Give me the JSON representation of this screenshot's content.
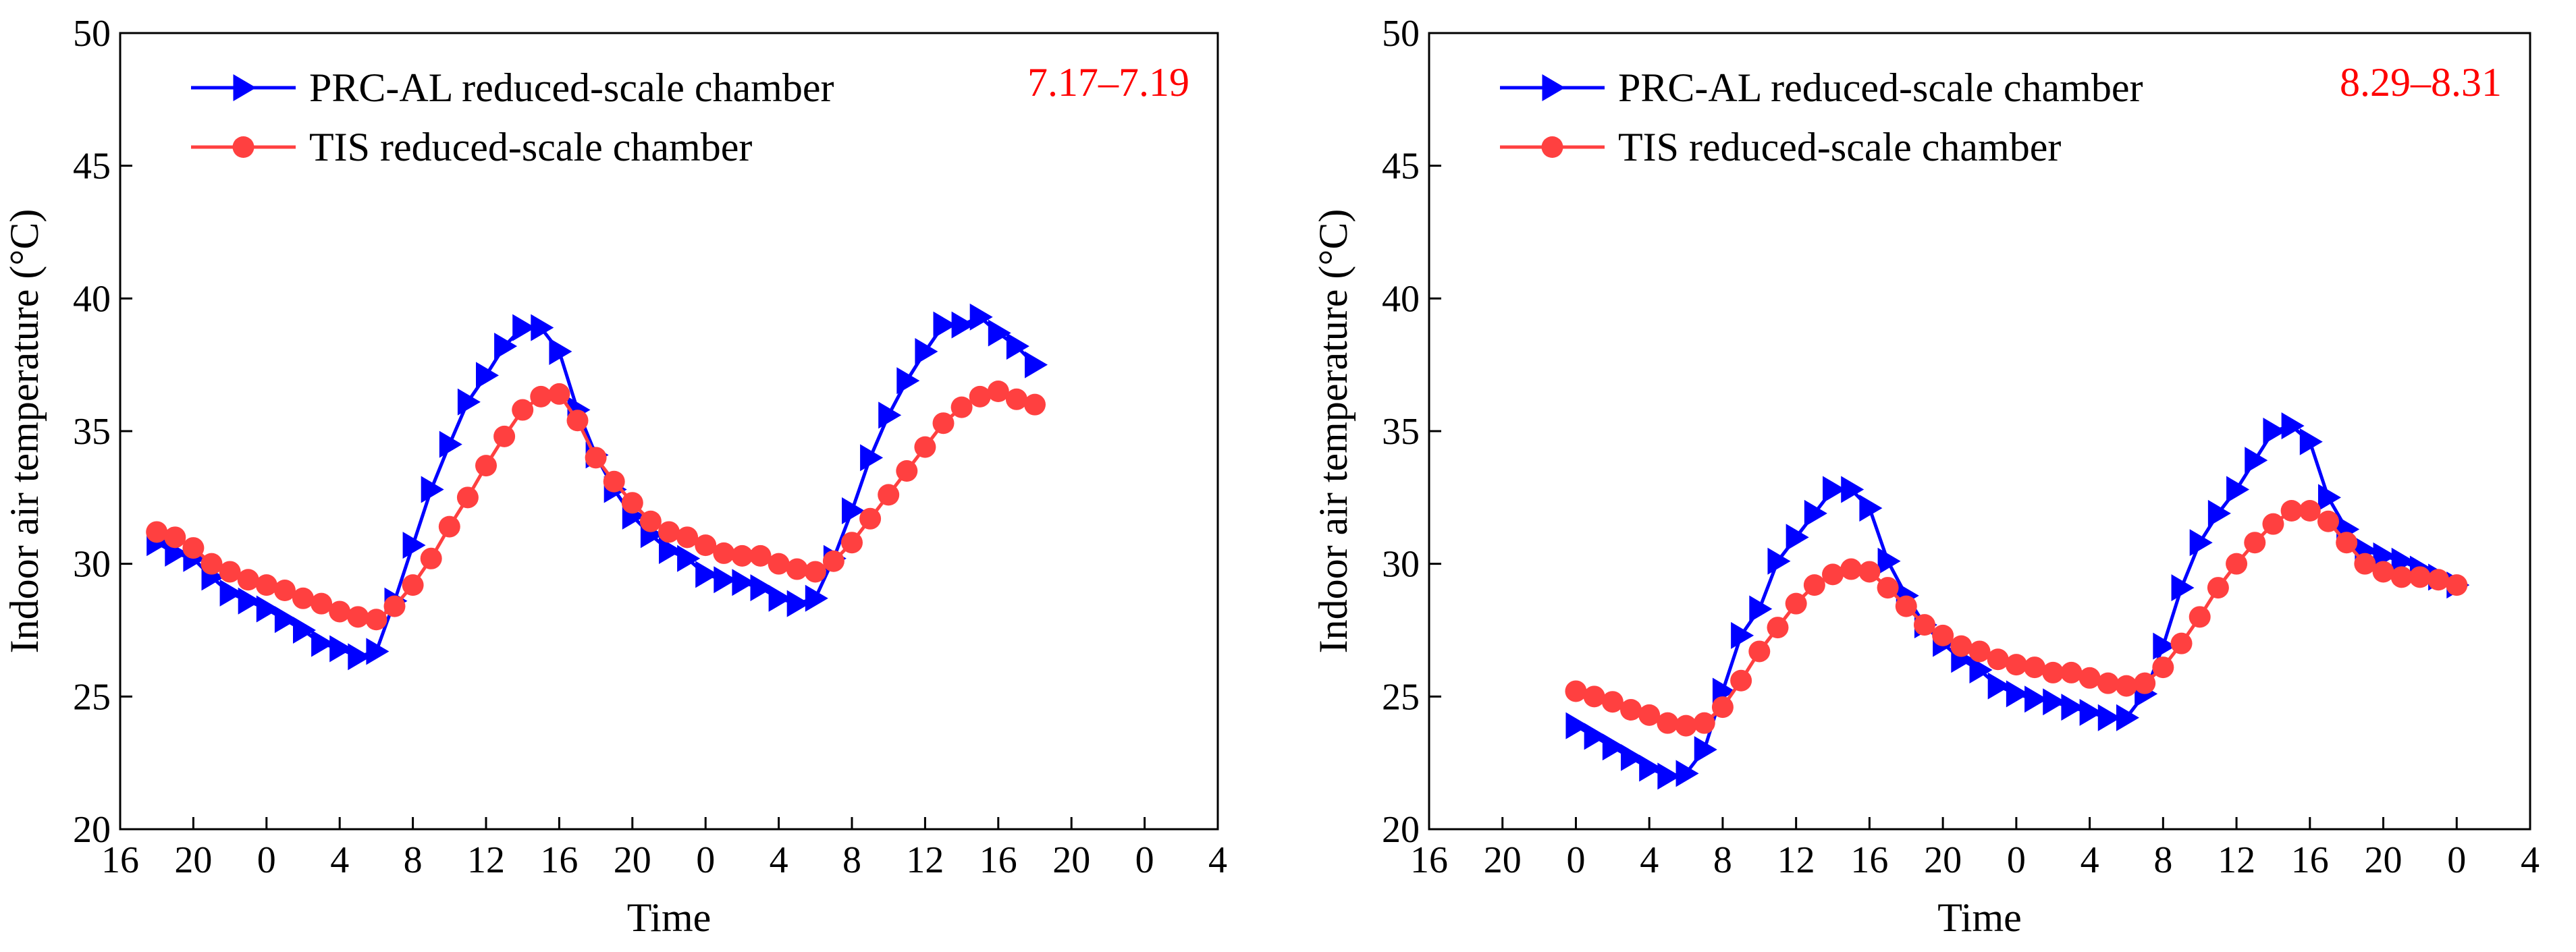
{
  "chart_data": [
    {
      "type": "line",
      "annotation": "7.17–7.19",
      "xlabel": "Time",
      "ylabel": "Indoor air temperature (°C)",
      "x_unit": "hours since first tick (16:00)",
      "xlim": [
        0,
        60
      ],
      "xticks": [
        0,
        4,
        8,
        12,
        16,
        20,
        24,
        28,
        32,
        36,
        40,
        44,
        48,
        52,
        56,
        60
      ],
      "xtick_labels": [
        "16",
        "20",
        "0",
        "4",
        "8",
        "12",
        "16",
        "20",
        "0",
        "4",
        "8",
        "12",
        "16",
        "20",
        "0",
        "4"
      ],
      "ylim": [
        20,
        50
      ],
      "yticks": [
        20,
        25,
        30,
        35,
        40,
        45,
        50
      ],
      "ytick_labels": [
        "20",
        "25",
        "30",
        "35",
        "40",
        "45",
        "50"
      ],
      "grid": false,
      "legend_position": "top-left",
      "series": [
        {
          "name": "PRC-AL reduced-scale chamber",
          "color": "#0000ff",
          "marker": "triangle-right",
          "x_start": 2,
          "values": [
            30.8,
            30.4,
            30.2,
            29.5,
            28.9,
            28.6,
            28.3,
            27.9,
            27.5,
            27.0,
            26.8,
            26.5,
            26.7,
            28.6,
            30.7,
            32.8,
            34.5,
            36.1,
            37.1,
            38.2,
            38.9,
            38.9,
            38.0,
            35.8,
            34.1,
            32.8,
            31.8,
            31.1,
            30.5,
            30.2,
            29.6,
            29.4,
            29.3,
            29.1,
            28.7,
            28.5,
            28.7,
            30.2,
            32.0,
            34.0,
            35.6,
            36.9,
            38.0,
            39.0,
            39.0,
            39.3,
            38.7,
            38.2,
            37.5
          ]
        },
        {
          "name": "TIS reduced-scale chamber",
          "color": "#ff4040",
          "marker": "circle",
          "x_start": 2,
          "values": [
            31.2,
            31.0,
            30.6,
            30.0,
            29.7,
            29.4,
            29.2,
            29.0,
            28.7,
            28.5,
            28.2,
            28.0,
            27.9,
            28.4,
            29.2,
            30.2,
            31.4,
            32.5,
            33.7,
            34.8,
            35.8,
            36.3,
            36.4,
            35.4,
            34.0,
            33.1,
            32.3,
            31.6,
            31.2,
            31.0,
            30.7,
            30.4,
            30.3,
            30.3,
            30.0,
            29.8,
            29.7,
            30.1,
            30.8,
            31.7,
            32.6,
            33.5,
            34.4,
            35.3,
            35.9,
            36.3,
            36.5,
            36.2,
            36.0
          ]
        }
      ]
    },
    {
      "type": "line",
      "annotation": "8.29–8.31",
      "xlabel": "Time",
      "ylabel": "Indoor air temperature (°C)",
      "x_unit": "hours since first tick (16:00)",
      "xlim": [
        0,
        60
      ],
      "xticks": [
        0,
        4,
        8,
        12,
        16,
        20,
        24,
        28,
        32,
        36,
        40,
        44,
        48,
        52,
        56,
        60
      ],
      "xtick_labels": [
        "16",
        "20",
        "0",
        "4",
        "8",
        "12",
        "16",
        "20",
        "0",
        "4",
        "8",
        "12",
        "16",
        "20",
        "0",
        "4"
      ],
      "ylim": [
        20,
        50
      ],
      "yticks": [
        20,
        25,
        30,
        35,
        40,
        45,
        50
      ],
      "ytick_labels": [
        "20",
        "25",
        "30",
        "35",
        "40",
        "45",
        "50"
      ],
      "grid": false,
      "legend_position": "top-left",
      "series": [
        {
          "name": "PRC-AL reduced-scale chamber",
          "color": "#0000ff",
          "marker": "triangle-right",
          "x_start": 8,
          "values": [
            23.9,
            23.5,
            23.1,
            22.7,
            22.3,
            22.0,
            22.1,
            23.0,
            25.2,
            27.3,
            28.3,
            30.1,
            31.0,
            31.9,
            32.8,
            32.8,
            32.1,
            30.1,
            28.8,
            27.7,
            27.0,
            26.4,
            26.0,
            25.4,
            25.1,
            24.9,
            24.8,
            24.6,
            24.4,
            24.2,
            24.2,
            25.1,
            26.9,
            29.1,
            30.8,
            31.9,
            32.8,
            33.9,
            35.0,
            35.2,
            34.6,
            32.5,
            31.3,
            30.5,
            30.3,
            30.1,
            29.8,
            29.5,
            29.2
          ]
        },
        {
          "name": "TIS reduced-scale chamber",
          "color": "#ff4040",
          "marker": "circle",
          "x_start": 8,
          "values": [
            25.2,
            25.0,
            24.8,
            24.5,
            24.3,
            24.0,
            23.9,
            24.0,
            24.6,
            25.6,
            26.7,
            27.6,
            28.5,
            29.2,
            29.6,
            29.8,
            29.7,
            29.1,
            28.4,
            27.7,
            27.3,
            26.9,
            26.7,
            26.4,
            26.2,
            26.1,
            25.9,
            25.9,
            25.7,
            25.5,
            25.4,
            25.5,
            26.1,
            27.0,
            28.0,
            29.1,
            30.0,
            30.8,
            31.5,
            32.0,
            32.0,
            31.6,
            30.8,
            30.0,
            29.7,
            29.5,
            29.5,
            29.4,
            29.2
          ]
        }
      ]
    }
  ]
}
